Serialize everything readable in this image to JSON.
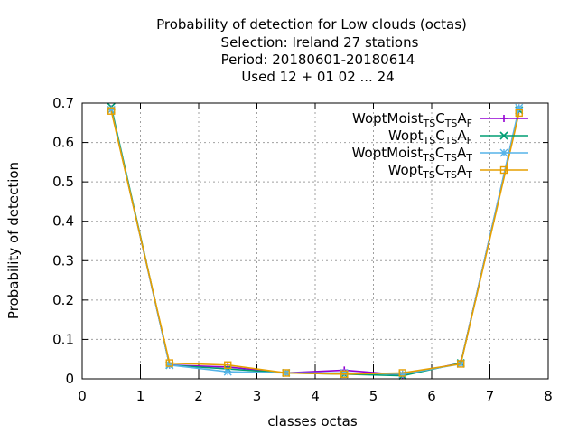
{
  "chart_data": {
    "type": "line",
    "title_lines": [
      "Probability of detection  for Low clouds (octas)",
      "Selection: Ireland     27 stations",
      "Period: 20180601-20180614",
      "Used  12 + 01 02 ... 24"
    ],
    "xlabel": "classes octas",
    "ylabel": "Probability of detection",
    "xlim": [
      0,
      8
    ],
    "ylim": [
      0,
      0.7
    ],
    "xticks": [
      "0",
      "1",
      "2",
      "3",
      "4",
      "5",
      "6",
      "7",
      "8"
    ],
    "yticks": [
      "0",
      "0.1",
      "0.2",
      "0.3",
      "0.4",
      "0.5",
      "0.6",
      "0.7"
    ],
    "grid": true,
    "legend_position": "top-right",
    "x": [
      0.5,
      1.5,
      2.5,
      3.5,
      4.5,
      5.5,
      6.5,
      7.5
    ],
    "series": [
      {
        "name_parts": [
          "WoptMoist",
          "TS",
          "C",
          "TS",
          "A",
          "F"
        ],
        "color": "#9400d3",
        "marker": "plus",
        "values": [
          0.685,
          0.035,
          0.03,
          0.015,
          0.022,
          0.01,
          0.04,
          0.685
        ]
      },
      {
        "name_parts": [
          "Wopt",
          "TS",
          "C",
          "TS",
          "A",
          "F"
        ],
        "color": "#009e73",
        "marker": "cross",
        "values": [
          0.69,
          0.035,
          0.025,
          0.015,
          0.012,
          0.008,
          0.04,
          0.682
        ]
      },
      {
        "name_parts": [
          "WoptMoist",
          "TS",
          "C",
          "TS",
          "A",
          "T"
        ],
        "color": "#56b4e9",
        "marker": "star",
        "values": [
          0.683,
          0.035,
          0.018,
          0.015,
          0.015,
          0.012,
          0.038,
          0.688
        ]
      },
      {
        "name_parts": [
          "Wopt",
          "TS",
          "C",
          "TS",
          "A",
          "T"
        ],
        "color": "#e69f00",
        "marker": "box",
        "values": [
          0.68,
          0.04,
          0.035,
          0.015,
          0.012,
          0.015,
          0.038,
          0.675
        ]
      }
    ],
    "minor_ticks_x": [
      1,
      2,
      3,
      4,
      5,
      6,
      7
    ]
  }
}
